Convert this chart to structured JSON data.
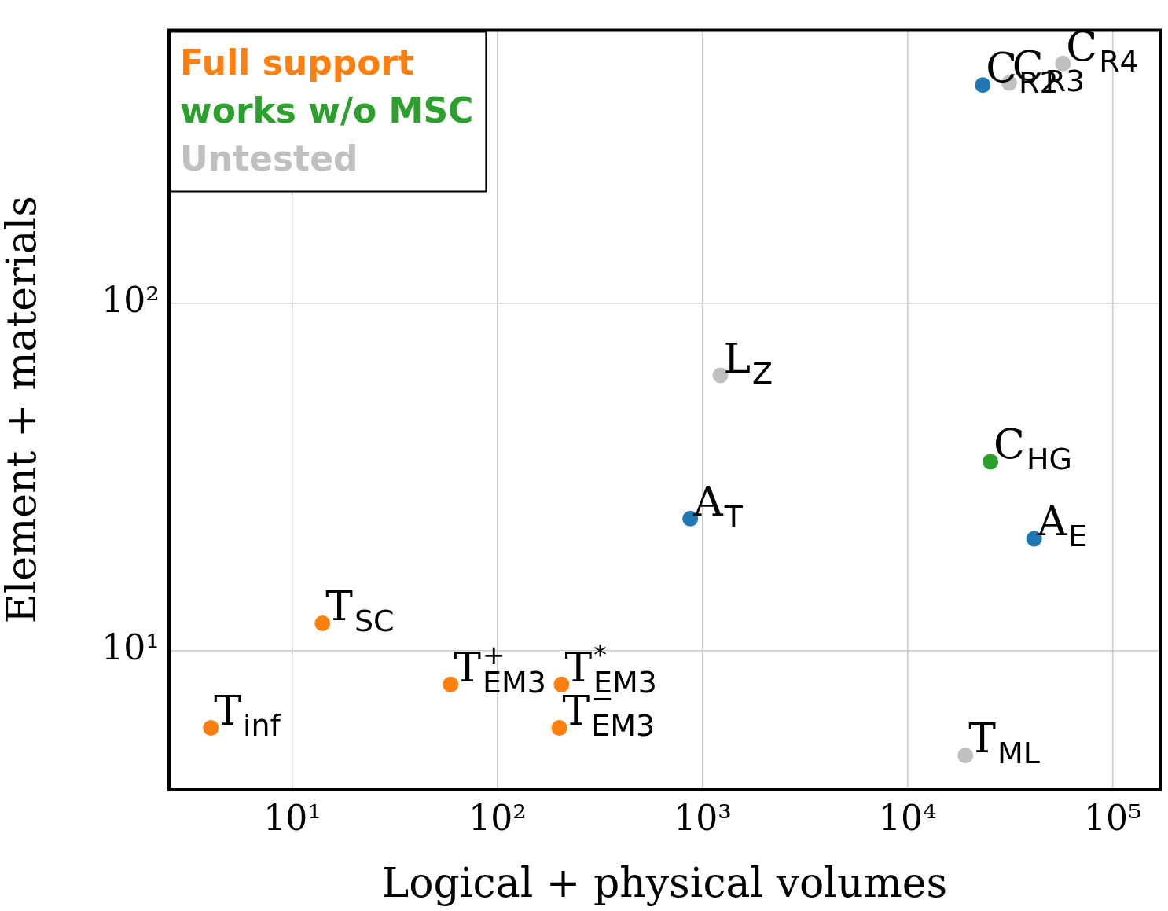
{
  "chart_data": {
    "type": "scatter",
    "xlabel": "Logical + physical volumes",
    "ylabel": "Element + materials",
    "log": "xy",
    "grid": true,
    "legend": "top left",
    "marker": "circle",
    "xlim": [
      2.5,
      170000
    ],
    "ylim": [
      4,
      610
    ],
    "xticks": [
      {
        "value": 10,
        "label": "10¹"
      },
      {
        "value": 100,
        "label": "10²"
      },
      {
        "value": 1000,
        "label": "10³"
      },
      {
        "value": 10000,
        "label": "10⁴"
      },
      {
        "value": 100000,
        "label": "10⁵"
      }
    ],
    "yticks": [
      {
        "value": 10,
        "label": "10¹"
      },
      {
        "value": 100,
        "label": "10²"
      }
    ],
    "series": [
      {
        "name": "Full support",
        "color": "#ff7f0e",
        "x": [
          4,
          14,
          59,
          205,
          200
        ],
        "values": [
          6,
          12,
          8,
          8,
          6
        ]
      },
      {
        "name": "works w/o MSC",
        "color": "#2ca02c",
        "x": [
          25300
        ],
        "values": [
          35
        ]
      },
      {
        "color": "#1f77b4",
        "x": [
          870,
          41300,
          23200
        ],
        "values": [
          24,
          21,
          424
        ]
      },
      {
        "name": "Untested",
        "color": "#c0c0c0",
        "x": [
          1220,
          19100,
          31200,
          57100
        ],
        "values": [
          62,
          5,
          430,
          489
        ]
      }
    ],
    "annotations": [
      {
        "text": "T$_{inf}$",
        "x": 4,
        "y": 6
      },
      {
        "text": "T$_{SC}$",
        "x": 14,
        "y": 12
      },
      {
        "text": "T$^{+}$$_{EM3}$",
        "x": 59,
        "y": 8
      },
      {
        "text": "T$^{*}$$_{EM3}$",
        "x": 205,
        "y": 8
      },
      {
        "text": "T$^{−}$$_{EM3}$",
        "x": 200,
        "y": 6
      },
      {
        "text": "A$_{T}$",
        "x": 870,
        "y": 24
      },
      {
        "text": "L$_{Z}$",
        "x": 1220,
        "y": 62
      },
      {
        "text": "C$_{HG}$",
        "x": 25300,
        "y": 35
      },
      {
        "text": "A$_{E}$",
        "x": 41300,
        "y": 21
      },
      {
        "text": "T$_{ML}$",
        "x": 19100,
        "y": 5
      },
      {
        "text": "C$_{R2}$",
        "x": 23200,
        "y": 424
      },
      {
        "text": "C$_{R3}$",
        "x": 31200,
        "y": 430
      },
      {
        "text": "C$_{R4}$",
        "x": 57100,
        "y": 489
      }
    ]
  }
}
